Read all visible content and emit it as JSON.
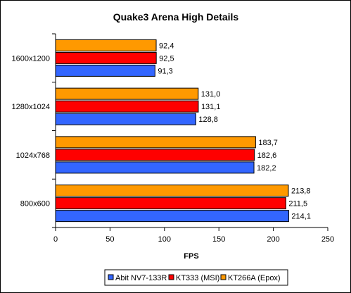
{
  "chart_data": {
    "type": "bar",
    "orientation": "horizontal",
    "title": "Quake3 Arena High Details",
    "xlabel": "FPS",
    "ylabel": "",
    "xlim": [
      0,
      250
    ],
    "x_ticks": [
      "0",
      "50",
      "100",
      "150",
      "200",
      "250"
    ],
    "grid": false,
    "legend_position": "bottom",
    "categories": [
      "1600x1200",
      "1280x1024",
      "1024x768",
      "800x600"
    ],
    "series": [
      {
        "name": "Abit NV7-133R",
        "color": "#3366ff",
        "values": [
          91.3,
          128.8,
          182.2,
          214.1
        ],
        "labels": [
          "91,3",
          "128,8",
          "182,2",
          "214,1"
        ]
      },
      {
        "name": "KT333 (MSI)",
        "color": "#ff0000",
        "values": [
          92.5,
          131.1,
          182.6,
          211.5
        ],
        "labels": [
          "92,5",
          "131,1",
          "182,6",
          "211,5"
        ]
      },
      {
        "name": "KT266A (Epox)",
        "color": "#ff9900",
        "values": [
          92.4,
          131.0,
          183.7,
          213.8
        ],
        "labels": [
          "92,4",
          "131,0",
          "183,7",
          "213,8"
        ]
      }
    ]
  }
}
